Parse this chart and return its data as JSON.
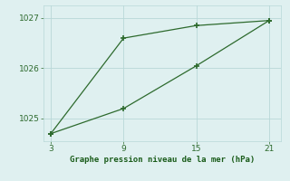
{
  "line1_x": [
    3,
    9,
    15,
    21
  ],
  "line1_y": [
    1024.7,
    1026.6,
    1026.85,
    1026.95
  ],
  "line2_x": [
    3,
    9,
    15,
    21
  ],
  "line2_y": [
    1024.7,
    1025.2,
    1026.05,
    1026.95
  ],
  "line_color": "#2d6a2d",
  "marker": "+",
  "markersize": 5,
  "markeredgewidth": 1.2,
  "xlabel": "Graphe pression niveau de la mer (hPa)",
  "xlabel_color": "#1a5c1a",
  "xticks": [
    3,
    9,
    15,
    21
  ],
  "yticks": [
    1025,
    1026,
    1027
  ],
  "xlim": [
    2.4,
    22.0
  ],
  "ylim": [
    1024.55,
    1027.25
  ],
  "bg_color": "#dff0f0",
  "grid_color": "#b8d8d8",
  "tick_color": "#2d6a2d",
  "linewidth": 0.9,
  "figwidth": 3.2,
  "figheight": 2.0,
  "dpi": 100
}
